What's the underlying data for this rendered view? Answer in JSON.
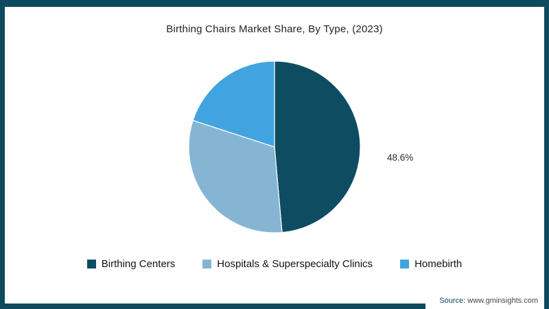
{
  "frame": {
    "border_color": "#0d4a5e"
  },
  "chart_data": {
    "type": "pie",
    "title": "Birthing Chairs Market Share, By Type, (2023)",
    "series": [
      {
        "name": "Birthing Centers",
        "value": 48.6,
        "color": "#0e4c61"
      },
      {
        "name": "Hospitals & Superspecialty Clinics",
        "value": 31.4,
        "color": "#86b5d4"
      },
      {
        "name": "Homebirth",
        "value": 20.0,
        "color": "#41a4e0"
      }
    ],
    "data_labels": [
      {
        "series": "Birthing Centers",
        "text": "48.6%"
      }
    ],
    "start_angle_deg": 0,
    "direction": "clockwise",
    "legend_position": "bottom",
    "grid": false
  },
  "source": {
    "prefix": "Source:",
    "text": "www.gminsights.com"
  }
}
